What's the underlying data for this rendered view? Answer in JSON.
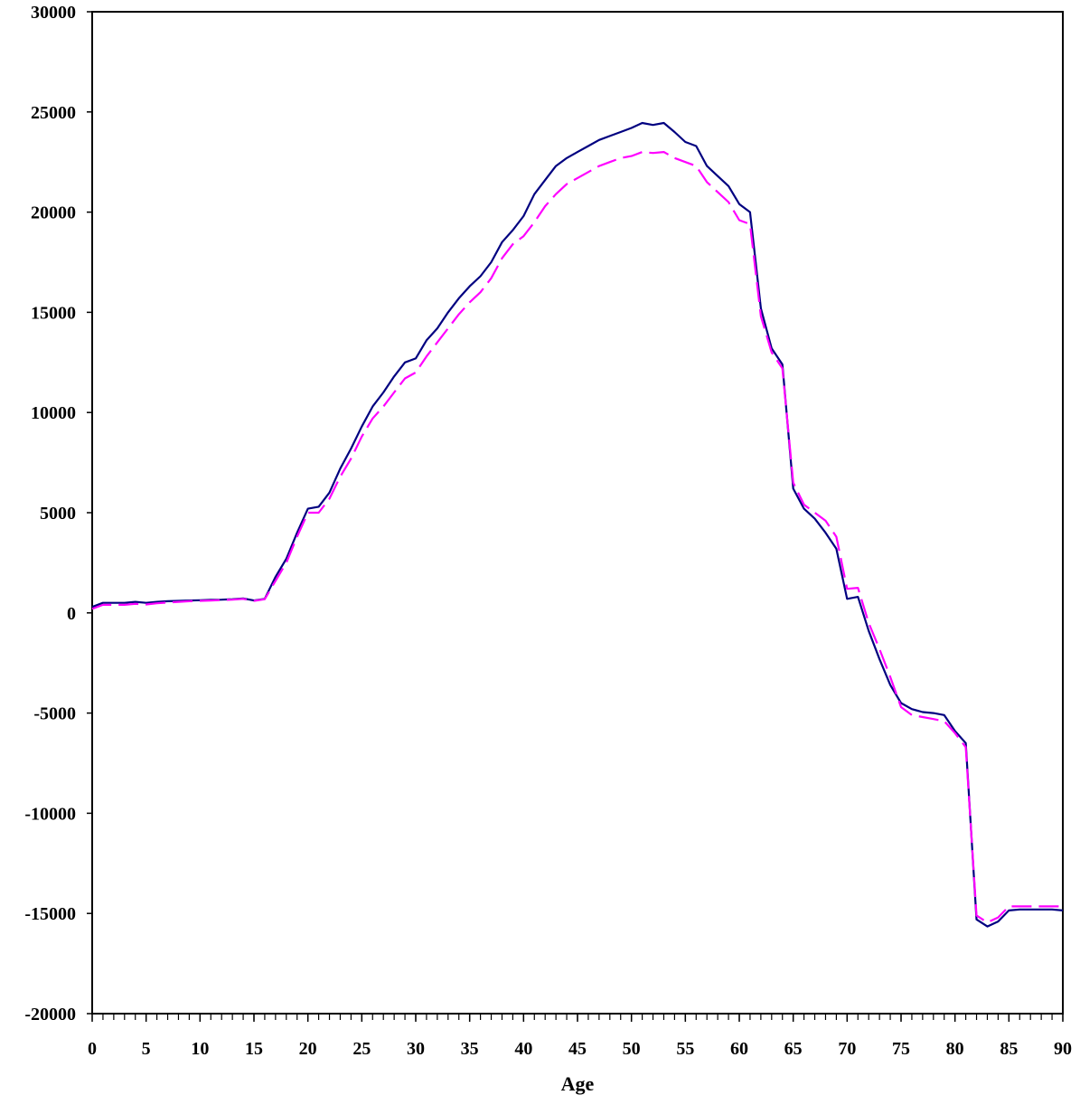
{
  "chart_data": {
    "type": "line",
    "title": "",
    "xlabel": "Age",
    "ylabel": "",
    "xlim": [
      0,
      90
    ],
    "ylim": [
      -20000,
      30000
    ],
    "x_ticks": [
      "0",
      "5",
      "10",
      "15",
      "20",
      "25",
      "30",
      "35",
      "40",
      "45",
      "50",
      "55",
      "60",
      "65",
      "70",
      "75",
      "80",
      "85",
      "90"
    ],
    "y_ticks": [
      "30000",
      "25000",
      "20000",
      "15000",
      "10000",
      "5000",
      "0",
      "-5000",
      "-10000",
      "-15000",
      "-20000"
    ],
    "grid": false,
    "legend": "none",
    "series": [
      {
        "color": "#000080",
        "style": "solid",
        "values": [
          300,
          500,
          500,
          500,
          550,
          500,
          550,
          580,
          600,
          620,
          630,
          650,
          660,
          680,
          720,
          620,
          700,
          1800,
          2700,
          4000,
          5200,
          5300,
          6000,
          7200,
          8200,
          9300,
          10300,
          11000,
          11800,
          12500,
          12700,
          13600,
          14200,
          15000,
          15700,
          16300,
          16800,
          17500,
          18500,
          19100,
          19800,
          20900,
          21600,
          22300,
          22700,
          23000,
          23300,
          23600,
          23800,
          24000,
          24200,
          24450,
          24350,
          24450,
          24000,
          23500,
          23300,
          22300,
          21800,
          21300,
          20400,
          20000,
          15200,
          13200,
          12400,
          6200,
          5200,
          4700,
          4000,
          3200,
          700,
          800,
          -900,
          -2300,
          -3600,
          -4500,
          -4800,
          -4950,
          -5000,
          -5100,
          -5900,
          -6500,
          -15300,
          -15650,
          -15400,
          -14850,
          -14800,
          -14800,
          -14800,
          -14800,
          -14850
        ]
      },
      {
        "color": "#ff00ff",
        "style": "dashed",
        "values": [
          200,
          400,
          400,
          400,
          450,
          420,
          480,
          520,
          550,
          580,
          600,
          620,
          640,
          660,
          700,
          600,
          680,
          1600,
          2500,
          3800,
          5000,
          5000,
          5700,
          6800,
          7700,
          8800,
          9700,
          10300,
          11000,
          11700,
          12000,
          12800,
          13500,
          14200,
          14900,
          15500,
          16000,
          16700,
          17700,
          18400,
          18800,
          19500,
          20300,
          20900,
          21400,
          21700,
          22000,
          22300,
          22500,
          22700,
          22800,
          23000,
          22950,
          23000,
          22700,
          22500,
          22300,
          21500,
          21000,
          20500,
          19600,
          19400,
          14800,
          13000,
          12200,
          6500,
          5400,
          5000,
          4600,
          3800,
          1200,
          1250,
          -500,
          -1800,
          -3200,
          -4700,
          -5100,
          -5200,
          -5300,
          -5400,
          -6000,
          -6700,
          -15100,
          -15450,
          -15200,
          -14650,
          -14650,
          -14650,
          -14650,
          -14650,
          -14650
        ]
      }
    ]
  }
}
